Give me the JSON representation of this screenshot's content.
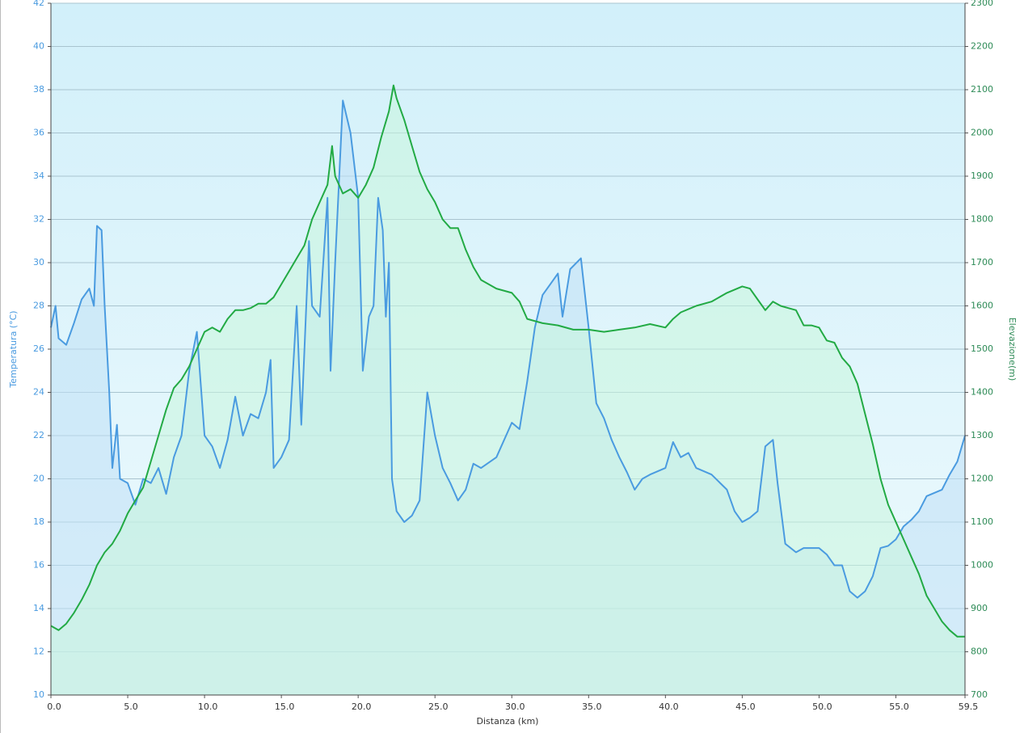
{
  "chart_data": {
    "type": "line",
    "x_label": "Distanza  (km)",
    "y_label": "Temperatura (°C)",
    "y2_label": "Elevazione(m)",
    "xlim": [
      0,
      59.5
    ],
    "xticks": [
      {
        "value": 0,
        "label": "0.0"
      },
      {
        "value": 5,
        "label": "5.0"
      },
      {
        "value": 10,
        "label": "10.0"
      },
      {
        "value": 15,
        "label": "15.0"
      },
      {
        "value": 20,
        "label": "20.0"
      },
      {
        "value": 25,
        "label": "25.0"
      },
      {
        "value": 30,
        "label": "30.0"
      },
      {
        "value": 35,
        "label": "35.0"
      },
      {
        "value": 40,
        "label": "40.0"
      },
      {
        "value": 45,
        "label": "45.0"
      },
      {
        "value": 50,
        "label": "50.0"
      },
      {
        "value": 55,
        "label": "55.0"
      },
      59.5
    ],
    "ylim": [
      10,
      42
    ],
    "yticks": [
      10,
      12,
      14,
      16,
      18,
      20,
      22,
      24,
      26,
      28,
      30,
      32,
      34,
      36,
      38,
      40,
      42
    ],
    "y2lim": [
      700,
      2300
    ],
    "y2ticks": [
      700,
      800,
      900,
      1000,
      1100,
      1200,
      1300,
      1400,
      1500,
      1600,
      1700,
      1800,
      1900,
      2000,
      2100,
      2200,
      2300
    ],
    "grid": true,
    "series": [
      {
        "color": "#4a9be0",
        "fill": "#bfe0f5",
        "axis": "y",
        "x": [
          0,
          0.3,
          0.5,
          1,
          1.5,
          2,
          2.5,
          2.8,
          3,
          3.3,
          3.5,
          3.8,
          4,
          4.3,
          4.5,
          5,
          5.5,
          6,
          6.5,
          7,
          7.5,
          8,
          8.5,
          9,
          9.5,
          10,
          10.5,
          11,
          11.5,
          12,
          12.5,
          13,
          13.5,
          14,
          14.3,
          14.5,
          15,
          15.5,
          16,
          16.3,
          16.8,
          17,
          17.5,
          18,
          18.2,
          18.5,
          19,
          19.5,
          20,
          20.3,
          20.7,
          21,
          21.3,
          21.6,
          21.8,
          22,
          22.2,
          22.5,
          23,
          23.5,
          24,
          24.5,
          25,
          25.5,
          26,
          26.5,
          27,
          27.5,
          28,
          29,
          30,
          30.5,
          31,
          31.5,
          32,
          32.5,
          33,
          33.3,
          33.8,
          34.5,
          35,
          35.5,
          36,
          36.5,
          37,
          37.5,
          38,
          38.5,
          39,
          40,
          40.5,
          41,
          41.5,
          42,
          43,
          44,
          44.5,
          45,
          45.5,
          46,
          46.5,
          47,
          47.3,
          47.8,
          48.5,
          49,
          49.5,
          50,
          50.5,
          51,
          51.5,
          52,
          52.5,
          53,
          53.5,
          54,
          54.5,
          55,
          55.5,
          56,
          56.5,
          57,
          58,
          58.5,
          59,
          59.5
        ],
        "values": [
          27,
          28,
          26.5,
          26.2,
          27.2,
          28.3,
          28.8,
          28,
          31.7,
          31.5,
          28,
          24,
          20.5,
          22.5,
          20,
          19.8,
          18.8,
          20,
          19.8,
          20.5,
          19.3,
          21,
          22,
          25,
          26.8,
          22,
          21.5,
          20.5,
          21.8,
          23.8,
          22,
          23,
          22.8,
          24,
          25.5,
          20.5,
          21,
          21.8,
          28,
          22.5,
          31,
          28,
          27.5,
          33,
          25,
          30,
          37.5,
          36,
          33,
          25,
          27.5,
          28,
          33,
          31.5,
          27.5,
          30,
          20,
          18.5,
          18,
          18.3,
          19,
          24,
          22,
          20.5,
          19.8,
          19,
          19.5,
          20.7,
          20.5,
          21,
          22.6,
          22.3,
          24.5,
          27,
          28.5,
          29,
          29.5,
          27.5,
          29.7,
          30.2,
          27,
          23.5,
          22.8,
          21.8,
          21,
          20.3,
          19.5,
          20,
          20.2,
          20.5,
          21.7,
          21,
          21.2,
          20.5,
          20.2,
          19.5,
          18.5,
          18,
          18.2,
          18.5,
          21.5,
          21.8,
          19.8,
          17,
          16.6,
          16.8,
          16.8,
          16.8,
          16.5,
          16,
          16,
          14.8,
          14.5,
          14.8,
          15.5,
          16.8,
          16.9,
          17.2,
          17.8,
          18.1,
          18.5,
          19.2,
          19.5,
          20.2,
          20.8,
          22
        ]
      },
      {
        "color": "#22aa44",
        "fill": "#c8f5dc",
        "axis": "y2",
        "x": [
          0,
          0.5,
          1,
          1.5,
          2,
          2.5,
          3,
          3.5,
          4,
          4.5,
          5,
          5.5,
          6,
          6.5,
          7,
          7.5,
          8,
          8.5,
          9,
          9.5,
          10,
          10.5,
          11,
          11.5,
          12,
          12.5,
          13,
          13.5,
          14,
          14.5,
          15,
          15.5,
          16,
          16.5,
          17,
          17.5,
          18,
          18.3,
          18.5,
          19,
          19.5,
          20,
          20.5,
          21,
          21.5,
          22,
          22.3,
          22.5,
          23,
          23.5,
          24,
          24.5,
          25,
          25.5,
          26,
          26.5,
          27,
          27.5,
          28,
          29,
          30,
          30.5,
          31,
          32,
          33,
          34,
          35,
          36,
          37,
          38,
          39,
          40,
          40.5,
          41,
          42,
          43,
          44,
          45,
          45.5,
          46,
          46.5,
          47,
          47.5,
          48,
          48.5,
          49,
          49.5,
          50,
          50.5,
          51,
          51.5,
          52,
          52.5,
          53,
          53.5,
          54,
          54.5,
          55,
          55.5,
          56,
          56.5,
          57,
          57.5,
          58,
          58.5,
          59,
          59.5
        ],
        "values": [
          860,
          850,
          865,
          890,
          920,
          955,
          1000,
          1030,
          1050,
          1080,
          1120,
          1150,
          1180,
          1240,
          1300,
          1360,
          1410,
          1430,
          1460,
          1500,
          1540,
          1550,
          1540,
          1570,
          1590,
          1590,
          1595,
          1605,
          1605,
          1620,
          1650,
          1680,
          1710,
          1740,
          1800,
          1840,
          1880,
          1970,
          1900,
          1860,
          1870,
          1850,
          1880,
          1920,
          1990,
          2050,
          2110,
          2080,
          2030,
          1970,
          1910,
          1870,
          1840,
          1800,
          1780,
          1780,
          1730,
          1690,
          1660,
          1640,
          1630,
          1610,
          1570,
          1560,
          1555,
          1545,
          1545,
          1540,
          1545,
          1550,
          1558,
          1550,
          1570,
          1585,
          1600,
          1610,
          1630,
          1645,
          1640,
          1615,
          1590,
          1610,
          1600,
          1595,
          1590,
          1555,
          1555,
          1550,
          1520,
          1515,
          1480,
          1460,
          1420,
          1350,
          1280,
          1200,
          1140,
          1100,
          1060,
          1020,
          980,
          930,
          900,
          870,
          850,
          835,
          835
        ]
      }
    ]
  }
}
